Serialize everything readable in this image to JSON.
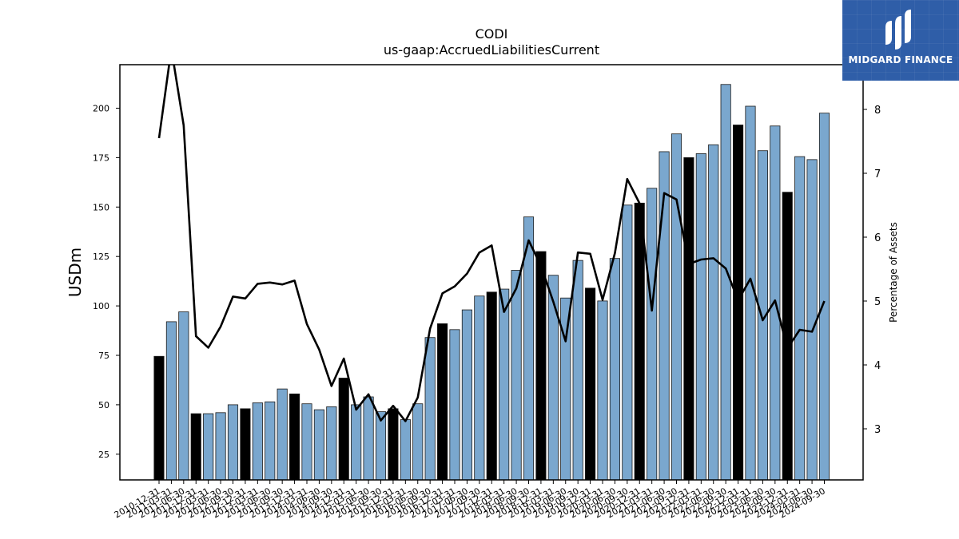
{
  "logo": {
    "text": "MIDGARD FINANCE"
  },
  "chart_data": {
    "type": "bar",
    "title": "CODI",
    "subtitle": "us-gaap:AccruedLiabilitiesCurrent",
    "ylabel": "USDm",
    "y2label": "Percentage of Assets",
    "ylim": [
      12,
      222
    ],
    "y2lim": [
      2.2,
      8.7
    ],
    "yticks": [
      25,
      50,
      75,
      100,
      125,
      150,
      175,
      200
    ],
    "y2ticks": [
      3,
      4,
      5,
      6,
      7,
      8
    ],
    "categories": [
      "2010-12-31",
      "2011-03-31",
      "2011-06-30",
      "2011-12-31",
      "2012-03-31",
      "2012-06-30",
      "2012-09-30",
      "2012-12-31",
      "2013-03-31",
      "2013-06-30",
      "2013-09-30",
      "2013-12-31",
      "2014-03-31",
      "2014-06-30",
      "2014-09-30",
      "2014-12-31",
      "2015-03-31",
      "2015-06-30",
      "2015-09-30",
      "2015-12-31",
      "2016-03-31",
      "2016-06-30",
      "2016-09-30",
      "2016-12-31",
      "2017-03-31",
      "2017-06-30",
      "2017-09-30",
      "2017-12-31",
      "2018-03-31",
      "2018-06-30",
      "2018-09-30",
      "2018-12-31",
      "2019-03-31",
      "2019-06-30",
      "2019-09-30",
      "2019-12-31",
      "2020-03-31",
      "2020-06-30",
      "2020-09-30",
      "2020-12-31",
      "2021-03-31",
      "2021-06-30",
      "2021-09-30",
      "2021-12-31",
      "2022-03-31",
      "2022-06-30",
      "2022-09-30",
      "2022-12-31",
      "2023-03-31",
      "2023-06-30",
      "2023-09-30",
      "2023-12-31",
      "2024-03-31",
      "2024-06-30",
      "2024-09-30"
    ],
    "series": [
      {
        "values": [
          74.5,
          92.0,
          97.0,
          45.5,
          45.5,
          46.0,
          50.0,
          48.0,
          51.0,
          51.5,
          58.0,
          55.5,
          50.5,
          47.5,
          49.0,
          63.5,
          50.0,
          54.0,
          46.5,
          48.0,
          42.5,
          50.5,
          84.0,
          91.0,
          88.0,
          98.0,
          105.0,
          107.0,
          108.5,
          118.0,
          145.0,
          127.5,
          115.5,
          104.0,
          123.0,
          109.0,
          102.5,
          124.0,
          151.0,
          152.0,
          159.5,
          178.0,
          187.0,
          175.0,
          177.0,
          181.5,
          212.0,
          191.5,
          201.0,
          178.5,
          191.0,
          157.5,
          175.5,
          174.0,
          197.5
        ],
        "highlight": [
          true,
          false,
          false,
          true,
          false,
          false,
          false,
          true,
          false,
          false,
          false,
          true,
          false,
          false,
          false,
          true,
          false,
          false,
          false,
          true,
          false,
          false,
          false,
          true,
          false,
          false,
          false,
          true,
          false,
          false,
          false,
          true,
          false,
          false,
          false,
          true,
          false,
          false,
          false,
          true,
          false,
          false,
          false,
          true,
          false,
          false,
          false,
          true,
          false,
          false,
          false,
          true,
          false,
          false,
          false
        ],
        "colors": {
          "bar": "#7aa7ce",
          "highlight": "#000000",
          "edge": "#1a1a1a"
        }
      },
      {
        "axis": "right",
        "values": [
          7.55,
          8.95,
          7.75,
          4.45,
          4.27,
          4.6,
          5.07,
          5.04,
          5.27,
          5.29,
          5.26,
          5.32,
          4.64,
          4.24,
          3.67,
          4.1,
          3.3,
          3.54,
          3.13,
          3.36,
          3.12,
          3.49,
          4.57,
          5.12,
          5.23,
          5.43,
          5.76,
          5.87,
          4.83,
          5.2,
          5.95,
          5.55,
          4.99,
          4.37,
          5.76,
          5.74,
          5.02,
          5.75,
          6.91,
          6.53,
          4.85,
          6.69,
          6.59,
          5.58,
          5.65,
          5.67,
          5.51,
          5.01,
          5.35,
          4.7,
          5.01,
          4.26,
          4.55,
          4.52,
          5.0
        ],
        "colors": {
          "line": "#000000"
        }
      }
    ],
    "grid": false,
    "legend": "none"
  }
}
